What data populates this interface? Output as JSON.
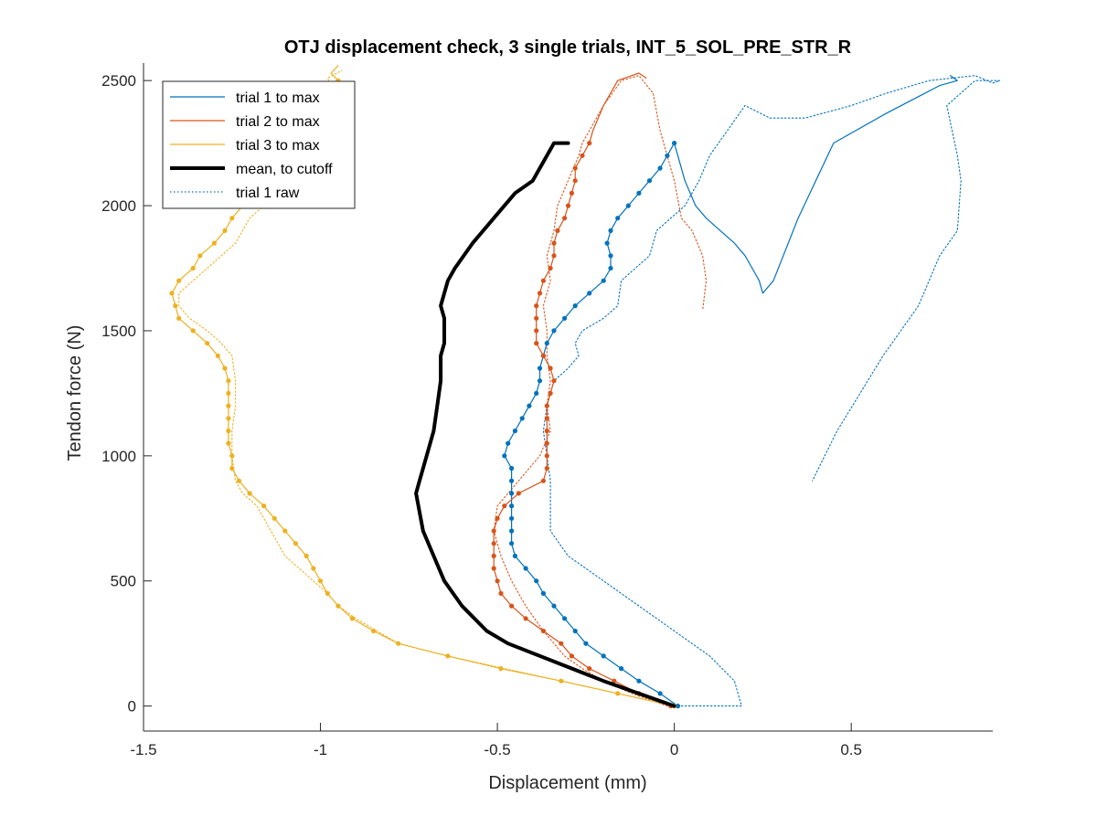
{
  "chart_data": {
    "type": "line",
    "title": "OTJ displacement check, 3 single trials, INT_5_SOL_PRE_STR_R",
    "xlabel": "Displacement (mm)",
    "ylabel": "Tendon force (N)",
    "xlim": [
      -1.5,
      0.9
    ],
    "ylim": [
      -100,
      2570
    ],
    "xticks": [
      -1.5,
      -1,
      -0.5,
      0,
      0.5
    ],
    "xtick_labels": [
      "-1.5",
      "-1",
      "-0.5",
      "0",
      "0.5"
    ],
    "yticks": [
      0,
      500,
      1000,
      1500,
      2000,
      2500
    ],
    "ytick_labels": [
      "0",
      "500",
      "1000",
      "1500",
      "2000",
      "2500"
    ],
    "grid": false,
    "legend_position": "top-left",
    "legend": [
      {
        "label": "trial 1 to max",
        "color": "#0072BD",
        "style": "solid"
      },
      {
        "label": "trial 2 to max",
        "color": "#D95319",
        "style": "solid"
      },
      {
        "label": "trial 3 to max",
        "color": "#EDB120",
        "style": "solid"
      },
      {
        "label": "mean, to cutoff",
        "color": "#000000",
        "style": "thick"
      },
      {
        "label": "trial 1 raw",
        "color": "#0072BD",
        "style": "dotted"
      }
    ],
    "series": [
      {
        "name": "trial 1 to max",
        "color": "#0072BD",
        "style": "solid",
        "markers": true,
        "x": [
          0.01,
          -0.04,
          -0.1,
          -0.15,
          -0.2,
          -0.25,
          -0.28,
          -0.31,
          -0.34,
          -0.37,
          -0.39,
          -0.42,
          -0.45,
          -0.46,
          -0.46,
          -0.46,
          -0.46,
          -0.46,
          -0.46,
          -0.46,
          -0.48,
          -0.47,
          -0.45,
          -0.43,
          -0.41,
          -0.39,
          -0.38,
          -0.38,
          -0.37,
          -0.36,
          -0.34,
          -0.31,
          -0.28,
          -0.24,
          -0.2,
          -0.18,
          -0.18,
          -0.19,
          -0.18,
          -0.16,
          -0.13,
          -0.1,
          -0.07,
          -0.04,
          -0.02,
          0.0,
          0.03,
          0.06,
          0.09,
          0.13,
          0.17,
          0.2,
          0.22,
          0.24,
          0.25,
          0.28,
          0.35,
          0.45,
          0.6,
          0.75,
          0.8,
          0.78
        ],
        "y": [
          0,
          50,
          100,
          150,
          200,
          250,
          300,
          350,
          400,
          450,
          500,
          550,
          600,
          650,
          700,
          750,
          800,
          850,
          900,
          950,
          1000,
          1050,
          1100,
          1150,
          1200,
          1250,
          1300,
          1350,
          1400,
          1450,
          1500,
          1550,
          1600,
          1650,
          1700,
          1750,
          1800,
          1850,
          1900,
          1950,
          2000,
          2050,
          2100,
          2150,
          2200,
          2250,
          2100,
          2000,
          1950,
          1900,
          1850,
          1800,
          1750,
          1700,
          1650,
          1700,
          1950,
          2250,
          2370,
          2480,
          2500,
          2520
        ]
      },
      {
        "name": "trial 2 to max",
        "color": "#D95319",
        "style": "solid",
        "markers": true,
        "x": [
          -0.01,
          -0.1,
          -0.17,
          -0.24,
          -0.29,
          -0.32,
          -0.37,
          -0.42,
          -0.46,
          -0.49,
          -0.5,
          -0.51,
          -0.51,
          -0.51,
          -0.51,
          -0.5,
          -0.48,
          -0.44,
          -0.37,
          -0.36,
          -0.36,
          -0.36,
          -0.36,
          -0.36,
          -0.36,
          -0.35,
          -0.34,
          -0.35,
          -0.37,
          -0.39,
          -0.39,
          -0.39,
          -0.39,
          -0.38,
          -0.37,
          -0.35,
          -0.34,
          -0.34,
          -0.33,
          -0.31,
          -0.3,
          -0.29,
          -0.28,
          -0.28,
          -0.26,
          -0.24,
          -0.23,
          -0.2,
          -0.16,
          -0.12,
          -0.1,
          -0.08
        ],
        "y": [
          0,
          50,
          100,
          150,
          200,
          250,
          300,
          350,
          400,
          450,
          500,
          550,
          600,
          650,
          700,
          750,
          800,
          850,
          900,
          950,
          1000,
          1050,
          1100,
          1150,
          1200,
          1250,
          1300,
          1350,
          1400,
          1450,
          1500,
          1550,
          1600,
          1650,
          1700,
          1750,
          1800,
          1850,
          1900,
          1950,
          2000,
          2050,
          2100,
          2150,
          2200,
          2250,
          2300,
          2400,
          2500,
          2520,
          2530,
          2510
        ]
      },
      {
        "name": "trial 3 to max",
        "color": "#EDB120",
        "style": "solid",
        "markers": true,
        "x": [
          0.0,
          -0.16,
          -0.32,
          -0.49,
          -0.64,
          -0.78,
          -0.85,
          -0.91,
          -0.95,
          -0.98,
          -1.0,
          -1.02,
          -1.04,
          -1.07,
          -1.1,
          -1.13,
          -1.16,
          -1.2,
          -1.23,
          -1.25,
          -1.25,
          -1.26,
          -1.26,
          -1.26,
          -1.26,
          -1.26,
          -1.26,
          -1.27,
          -1.29,
          -1.32,
          -1.36,
          -1.4,
          -1.41,
          -1.42,
          -1.4,
          -1.36,
          -1.34,
          -1.3,
          -1.27,
          -1.25,
          -1.22,
          -1.18,
          -1.1,
          -1.05,
          -1.0,
          -0.95,
          -0.97,
          -0.95
        ],
        "y": [
          0,
          50,
          100,
          150,
          200,
          250,
          300,
          350,
          400,
          450,
          500,
          550,
          600,
          650,
          700,
          750,
          800,
          850,
          900,
          950,
          1000,
          1050,
          1100,
          1150,
          1200,
          1250,
          1300,
          1350,
          1400,
          1450,
          1500,
          1550,
          1600,
          1650,
          1700,
          1750,
          1800,
          1850,
          1900,
          1950,
          2000,
          2100,
          2200,
          2300,
          2400,
          2500,
          2530,
          2560
        ]
      },
      {
        "name": "mean, to cutoff",
        "color": "#000000",
        "style": "thick",
        "markers": false,
        "x": [
          0.0,
          -0.2,
          -0.47,
          -0.53,
          -0.6,
          -0.65,
          -0.68,
          -0.71,
          -0.73,
          -0.72,
          -0.7,
          -0.68,
          -0.67,
          -0.66,
          -0.66,
          -0.65,
          -0.65,
          -0.65,
          -0.66,
          -0.65,
          -0.64,
          -0.62,
          -0.57,
          -0.51,
          -0.45,
          -0.4,
          -0.38,
          -0.36,
          -0.34,
          -0.3
        ],
        "y": [
          0,
          100,
          250,
          300,
          400,
          500,
          600,
          700,
          850,
          900,
          1000,
          1100,
          1200,
          1300,
          1400,
          1450,
          1500,
          1550,
          1600,
          1650,
          1700,
          1750,
          1850,
          1950,
          2050,
          2100,
          2150,
          2200,
          2250,
          2250
        ]
      },
      {
        "name": "trial 1 raw",
        "color": "#0072BD",
        "style": "dotted",
        "markers": false,
        "x": [
          0.02,
          0.14,
          0.19,
          0.17,
          0.1,
          0.0,
          -0.1,
          -0.2,
          -0.3,
          -0.35,
          -0.35,
          -0.35,
          -0.36,
          -0.37,
          -0.36,
          -0.34,
          -0.3,
          -0.27,
          -0.28,
          -0.26,
          -0.2,
          -0.16,
          -0.15,
          -0.07,
          -0.05,
          0.03,
          0.07,
          0.1,
          0.15,
          0.2,
          0.27,
          0.37,
          0.5,
          0.6,
          0.72,
          0.85,
          0.9,
          0.92,
          0.85,
          0.77,
          0.8,
          0.81,
          0.8,
          0.75,
          0.69,
          0.59,
          0.46,
          0.39
        ],
        "y": [
          0,
          0,
          0,
          100,
          200,
          300,
          400,
          500,
          600,
          700,
          800,
          900,
          1000,
          1100,
          1200,
          1300,
          1350,
          1400,
          1450,
          1500,
          1550,
          1600,
          1700,
          1800,
          1900,
          2000,
          2100,
          2200,
          2300,
          2400,
          2350,
          2350,
          2400,
          2450,
          2500,
          2520,
          2490,
          2500,
          2500,
          2400,
          2200,
          2100,
          1900,
          1800,
          1600,
          1400,
          1100,
          900
        ]
      },
      {
        "name": "trial 2 raw",
        "color": "#D95319",
        "style": "dotted",
        "markers": false,
        "x": [
          -0.02,
          -0.12,
          -0.2,
          -0.26,
          -0.31,
          -0.37,
          -0.42,
          -0.46,
          -0.49,
          -0.51,
          -0.5,
          -0.47,
          -0.44,
          -0.38,
          -0.35,
          -0.36,
          -0.35,
          -0.36,
          -0.36,
          -0.37,
          -0.35,
          -0.36,
          -0.34,
          -0.33,
          -0.3,
          -0.27,
          -0.26,
          -0.24,
          -0.2,
          -0.15,
          -0.1,
          -0.06,
          -0.04,
          0.0,
          0.02,
          0.05,
          0.08,
          0.09,
          0.08
        ],
        "y": [
          0,
          50,
          100,
          150,
          200,
          300,
          400,
          500,
          600,
          700,
          800,
          850,
          900,
          1000,
          1100,
          1200,
          1300,
          1400,
          1500,
          1600,
          1700,
          1800,
          1900,
          2000,
          2100,
          2200,
          2250,
          2300,
          2400,
          2500,
          2520,
          2450,
          2300,
          2100,
          1950,
          1900,
          1800,
          1700,
          1580
        ]
      },
      {
        "name": "trial 3 raw",
        "color": "#EDB120",
        "style": "dotted",
        "markers": false,
        "x": [
          0.0,
          -0.16,
          -0.32,
          -0.48,
          -0.64,
          -0.78,
          -0.84,
          -0.9,
          -0.95,
          -0.98,
          -1.02,
          -1.06,
          -1.1,
          -1.14,
          -1.18,
          -1.22,
          -1.24,
          -1.25,
          -1.25,
          -1.24,
          -1.24,
          -1.25,
          -1.28,
          -1.32,
          -1.37,
          -1.4,
          -1.4,
          -1.36,
          -1.32,
          -1.28,
          -1.24,
          -1.2,
          -1.12,
          -1.06,
          -1.0,
          -0.96,
          -0.98,
          -0.94
        ],
        "y": [
          0,
          50,
          100,
          150,
          200,
          250,
          300,
          350,
          400,
          450,
          500,
          550,
          600,
          700,
          800,
          850,
          900,
          1000,
          1100,
          1200,
          1300,
          1400,
          1450,
          1500,
          1550,
          1600,
          1650,
          1700,
          1750,
          1800,
          1850,
          1950,
          2050,
          2150,
          2300,
          2450,
          2510,
          2540
        ]
      }
    ]
  }
}
